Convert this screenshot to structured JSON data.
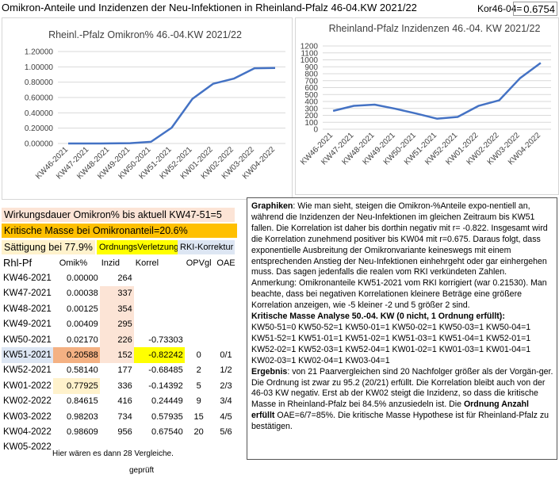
{
  "title": "Omikron-Anteile und Inzidenzen der Neu-Infektionen in Rheinland-Pfalz 46-04.KW 2021/22",
  "kor_label": "Kor46-04=",
  "kor_value": "0.6754",
  "bands": {
    "wirkungsdauer": "Wirkungsdauer Omikron% bis aktuell KW47-51=5",
    "kritische_masse": "Kritische Masse bei Omikronanteil=20.6%",
    "saettigung": "Sättigung bei 77.9%",
    "ordnungsverletzung": "OrdnungsVerletzung",
    "rki_korrektur": "RKI-Korrektur"
  },
  "colors": {
    "line": "#4472c4",
    "pink": "#fce4d6",
    "orange": "#f4b183",
    "light_yellow": "#fff2cc",
    "yellow": "#ffff00",
    "band_orange": "#ffc000",
    "light_blue": "#dde6f3"
  },
  "table": {
    "headers": [
      "Rhl-Pf",
      "Omik%",
      "Inzid",
      "Korrel",
      "OPVgl",
      "OAE"
    ],
    "rows": [
      [
        "KW46-2021",
        "0.00000",
        "264",
        "",
        "",
        ""
      ],
      [
        "KW47-2021",
        "0.00038",
        "337",
        "",
        "",
        ""
      ],
      [
        "KW48-2021",
        "0.00125",
        "354",
        "",
        "",
        ""
      ],
      [
        "KW49-2021",
        "0.00409",
        "295",
        "",
        "",
        ""
      ],
      [
        "KW50-2021",
        "0.02170",
        "226",
        "-0.73303",
        "",
        ""
      ],
      [
        "KW51-2021",
        "0.20588",
        "152",
        "-0.82242",
        "0",
        "0/1"
      ],
      [
        "KW52-2021",
        "0.58140",
        "177",
        "-0.68485",
        "2",
        "1/2"
      ],
      [
        "KW01-2022",
        "0.77925",
        "336",
        "-0.14392",
        "5",
        "2/3"
      ],
      [
        "KW02-2022",
        "0.84615",
        "416",
        "0.24449",
        "9",
        "3/4"
      ],
      [
        "KW03-2022",
        "0.98203",
        "734",
        "0.57935",
        "15",
        "4/5"
      ],
      [
        "KW04-2022",
        "0.98609",
        "956",
        "0.67540",
        "20",
        "5/6"
      ],
      [
        "KW05-2022",
        "",
        "",
        "",
        "",
        ""
      ]
    ]
  },
  "note": "Hier wären es dann 28 Vergleiche.",
  "geprueft": "geprüft",
  "textbox": {
    "graphiken_label": "Graphiken",
    "graphiken_text": ": Wie man sieht, steigen die Omikron-%Anteile expo-nentiell an, während die Inzidenzen der Neu-Infektionen im gleichen Zeitraum bis KW51 fallen. Die Korrelation ist daher bis dorthin negativ mit r= -0.822. Insgesamt wird die Korrelation zunehmend positiver bis KW04 mit r=0.675. Daraus folgt, dass exponentielle Ausbreitung der Omikronvariante keineswegs mit einem entsprechenden Anstieg der Neu-Infektionen einhehrgeht oder gar einhergehen muss. Das sagen jedenfalls die realen vom RKI verkündeten Zahlen.  Anmerkung: Omikronanteile KW51-2021 vom RKI korrigiert (war 0.21530). Man beachte, dass bei negativen Korrelationen kleinere Beträge eine größere Korrelation anzeigen, wie -5 kleiner -2 und 5 größer 2 sind.",
    "analyse_heading": "Kritische Masse Analyse 50.-04. KW  (0 nicht, 1 Ordnung erfüllt):",
    "pairs_1": "KW50-51=0  KW50-52=1  KW50-01=1  KW50-02=1  KW50-03=1  KW50-04=1",
    "pairs_2": "KW51-52=1  KW51-01=1  KW51-02=1  KW51-03=1  KW51-04=1  KW52-01=1",
    "pairs_3": "KW52-02=1  KW52-03=1  KW52-04=1  KW01-02=1  KW01-03=1  KW01-04=1",
    "pairs_4": "KW02-03=1  KW02-04=1  KW03-04=1",
    "ergebnis_label": "Ergebnis",
    "ergebnis_text": ": von 21 Paarvergleichen sind 20 Nachfolger größer als der Vorgän-ger. Die Ordnung ist zwar zu 95.2 (20/21) erfüllt. Die Korrelation bleibt auch von der 46-03 KW negativ.  Erst ab der KW02 steigt die Inzidenz, so dass die kritische Masse in Rheinland-Pfalz bei 84.5% anzusiedeln ist. Die ",
    "ordnung_bold": "Ordnung Anzahl erfüllt",
    "ergebnis_tail": " OAE=6/7=85%. Die kritische Masse Hypothese ist für Rheinland-Pfalz zu bestätigen."
  },
  "chart_data": [
    {
      "type": "line",
      "title": "Rheinl.-Pfalz Omikron%  46.-04.KW 2021/22",
      "categories": [
        "KW46-2021",
        "KW47-2021",
        "KW48-2021",
        "KW49-2021",
        "KW50-2021",
        "KW51-2021",
        "KW52-2021",
        "KW01-2022",
        "KW02-2022",
        "KW03-2022",
        "KW04-2022"
      ],
      "values": [
        0.0,
        0.00038,
        0.00125,
        0.00409,
        0.0217,
        0.20588,
        0.5814,
        0.77925,
        0.84615,
        0.98203,
        0.98609
      ],
      "ylim": [
        0,
        1.2
      ],
      "yticks": [
        "0.00000",
        "0.20000",
        "0.40000",
        "0.60000",
        "0.80000",
        "1.00000",
        "1.20000"
      ],
      "grid": true
    },
    {
      "type": "line",
      "title": "Rheinland-Pfalz Inzidenzen 46.-04. KW 2021/22",
      "categories": [
        "KW46-2021",
        "KW47-2021",
        "KW48-2021",
        "KW49-2021",
        "KW50-2021",
        "KW51-2021",
        "KW52-2021",
        "KW01-2022",
        "KW02-2022",
        "KW03-2022",
        "KW04-2022"
      ],
      "values": [
        264,
        337,
        354,
        295,
        226,
        152,
        177,
        336,
        416,
        734,
        956
      ],
      "ylim": [
        0,
        1200
      ],
      "yticks": [
        "0",
        "100",
        "200",
        "300",
        "400",
        "500",
        "600",
        "700",
        "800",
        "900",
        "1000",
        "1100",
        "1200"
      ],
      "grid": true
    }
  ]
}
